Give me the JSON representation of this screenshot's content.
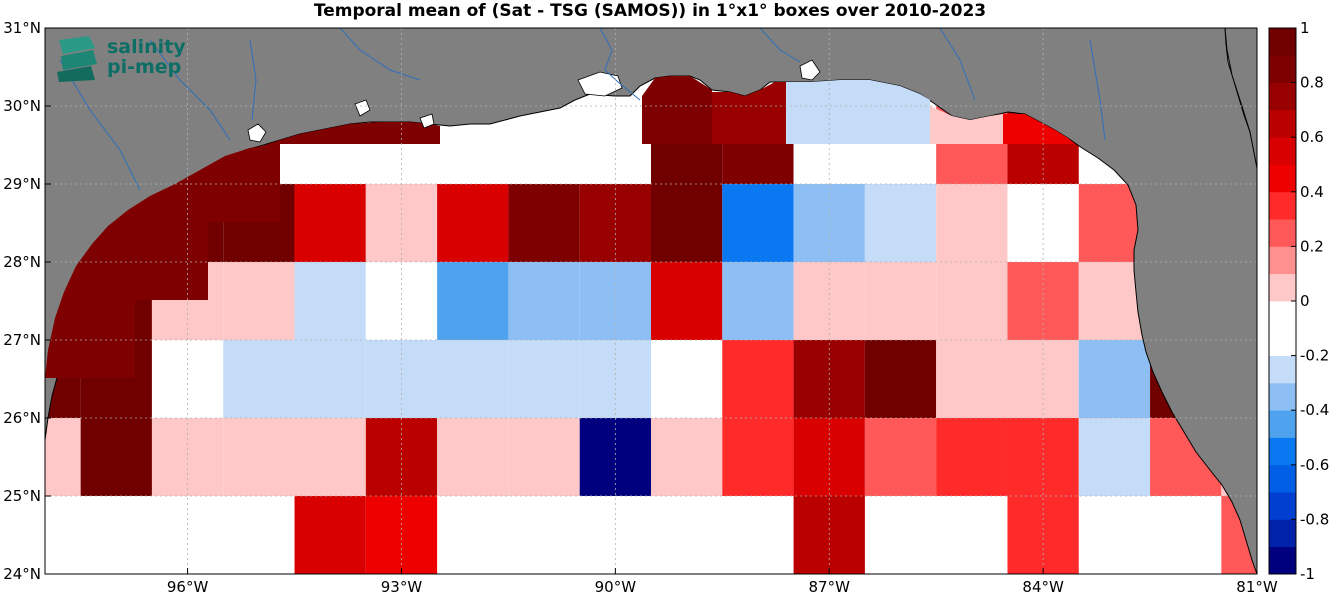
{
  "title": "Temporal mean of (Sat - TSG (SAMOS)) in 1°x1° boxes over 2010-2023",
  "logo": {
    "line1": "salinity",
    "line2": "pi-mep"
  },
  "chart_data": {
    "type": "heatmap",
    "lon_range": [
      -98,
      -81
    ],
    "lat_range": [
      24,
      31
    ],
    "x_tick_labels": [
      "96°W",
      "93°W",
      "90°W",
      "87°W",
      "84°W",
      "81°W"
    ],
    "x_tick_values": [
      -96,
      -93,
      -90,
      -87,
      -84,
      -81
    ],
    "y_tick_labels": [
      "24°N",
      "25°N",
      "26°N",
      "27°N",
      "28°N",
      "29°N",
      "30°N",
      "31°N"
    ],
    "y_tick_values": [
      24,
      25,
      26,
      27,
      28,
      29,
      30,
      31
    ],
    "grid": true,
    "colorbar": {
      "min": -1,
      "max": 1,
      "step": 0.1,
      "tick_labels": [
        "1",
        "0.8",
        "0.6",
        "0.4",
        "0.2",
        "0",
        "-0.2",
        "-0.4",
        "-0.6",
        "-0.8",
        "-1"
      ],
      "tick_values": [
        1,
        0.8,
        0.6,
        0.4,
        0.2,
        0,
        -0.2,
        -0.4,
        -0.6,
        -0.8,
        -1
      ],
      "colors": [
        "#00007f",
        "#0022a8",
        "#003fcf",
        "#005fe6",
        "#0a78f0",
        "#4ea2ee",
        "#8ebff4",
        "#c5dcf8",
        "#ffffff",
        "#ffffff",
        "#ffc8c8",
        "#ff9090",
        "#ff5858",
        "#ff2a2a",
        "#ee0000",
        "#d80000",
        "#bb0000",
        "#990000",
        "#7f0000",
        "#700000"
      ]
    },
    "cells": [
      {
        "lon": -98,
        "lat": 28.5,
        "value": 0.95
      },
      {
        "lon": -97,
        "lat": 28.5,
        "value": 0.95
      },
      {
        "lon": -96,
        "lat": 28.5,
        "value": 0.95
      },
      {
        "lon": -95,
        "lat": 28.5,
        "value": 0.95
      },
      {
        "lon": -94,
        "lat": 28.5,
        "value": 0.5
      },
      {
        "lon": -93,
        "lat": 28.5,
        "value": 0
      },
      {
        "lon": -92,
        "lat": 28.5,
        "value": 0.5
      },
      {
        "lon": -91,
        "lat": 28.5,
        "value": 0.8
      },
      {
        "lon": -90,
        "lat": 28.5,
        "value": 0.7
      },
      {
        "lon": -89,
        "lat": 28.5,
        "value": 0.95
      },
      {
        "lon": -88,
        "lat": 28.5,
        "value": -0.6
      },
      {
        "lon": -87,
        "lat": 28.5,
        "value": -0.4
      },
      {
        "lon": -86,
        "lat": 28.5,
        "value": -0.3
      },
      {
        "lon": -85,
        "lat": 28.5,
        "value": 0
      },
      {
        "lon": -84,
        "lat": 28.5,
        "value": -0.2
      },
      {
        "lon": -83,
        "lat": 28.5,
        "value": 0.2
      },
      {
        "lon": -89,
        "lat": 29.5,
        "value": 0.95
      },
      {
        "lon": -88,
        "lat": 29.5,
        "value": 0.85
      },
      {
        "lon": -87,
        "lat": 29.5,
        "value": -0.2
      },
      {
        "lon": -86,
        "lat": 29.5,
        "value": -0.2
      },
      {
        "lon": -85,
        "lat": 29.5,
        "value": 0.2
      },
      {
        "lon": -84,
        "lat": 29.5,
        "value": 0.6
      },
      {
        "lon": -98,
        "lat": 27.5,
        "value": 0.95
      },
      {
        "lon": -97,
        "lat": 27.5,
        "value": 0.95
      },
      {
        "lon": -96,
        "lat": 27.5,
        "value": 0
      },
      {
        "lon": -95,
        "lat": 27.5,
        "value": 0
      },
      {
        "lon": -94,
        "lat": 27.5,
        "value": -0.3
      },
      {
        "lon": -93,
        "lat": 27.5,
        "value": -0.2
      },
      {
        "lon": -92,
        "lat": 27.5,
        "value": -0.5
      },
      {
        "lon": -91,
        "lat": 27.5,
        "value": -0.4
      },
      {
        "lon": -90,
        "lat": 27.5,
        "value": -0.4
      },
      {
        "lon": -89,
        "lat": 27.5,
        "value": 0.5
      },
      {
        "lon": -88,
        "lat": 27.5,
        "value": -0.4
      },
      {
        "lon": -87,
        "lat": 27.5,
        "value": 0
      },
      {
        "lon": -86,
        "lat": 27.5,
        "value": 0
      },
      {
        "lon": -85,
        "lat": 27.5,
        "value": 0
      },
      {
        "lon": -84,
        "lat": 27.5,
        "value": 0.2
      },
      {
        "lon": -83,
        "lat": 27.5,
        "value": 0
      },
      {
        "lon": -98,
        "lat": 26.5,
        "value": 0.95
      },
      {
        "lon": -97,
        "lat": 26.5,
        "value": 0.95
      },
      {
        "lon": -96,
        "lat": 26.5,
        "value": -0.2
      },
      {
        "lon": -95,
        "lat": 26.5,
        "value": -0.3
      },
      {
        "lon": -94,
        "lat": 26.5,
        "value": -0.3
      },
      {
        "lon": -93,
        "lat": 26.5,
        "value": -0.3
      },
      {
        "lon": -92,
        "lat": 26.5,
        "value": -0.3
      },
      {
        "lon": -91,
        "lat": 26.5,
        "value": -0.3
      },
      {
        "lon": -90,
        "lat": 26.5,
        "value": -0.3
      },
      {
        "lon": -89,
        "lat": 26.5,
        "value": -0.2
      },
      {
        "lon": -88,
        "lat": 26.5,
        "value": 0.3
      },
      {
        "lon": -87,
        "lat": 26.5,
        "value": 0.75
      },
      {
        "lon": -86,
        "lat": 26.5,
        "value": 0.95
      },
      {
        "lon": -85,
        "lat": 26.5,
        "value": 0
      },
      {
        "lon": -84,
        "lat": 26.5,
        "value": 0
      },
      {
        "lon": -83,
        "lat": 26.5,
        "value": -0.4
      },
      {
        "lon": -82,
        "lat": 26.5,
        "value": 0.95
      },
      {
        "lon": -98,
        "lat": 25.5,
        "value": 0
      },
      {
        "lon": -97,
        "lat": 25.5,
        "value": 0.95
      },
      {
        "lon": -96,
        "lat": 25.5,
        "value": 0
      },
      {
        "lon": -95,
        "lat": 25.5,
        "value": 0
      },
      {
        "lon": -94,
        "lat": 25.5,
        "value": 0
      },
      {
        "lon": -93,
        "lat": 25.5,
        "value": 0.6
      },
      {
        "lon": -92,
        "lat": 25.5,
        "value": 0
      },
      {
        "lon": -91,
        "lat": 25.5,
        "value": 0
      },
      {
        "lon": -90,
        "lat": 25.5,
        "value": -1
      },
      {
        "lon": -89,
        "lat": 25.5,
        "value": 0
      },
      {
        "lon": -88,
        "lat": 25.5,
        "value": 0.3
      },
      {
        "lon": -87,
        "lat": 25.5,
        "value": 0.55
      },
      {
        "lon": -86,
        "lat": 25.5,
        "value": 0.2
      },
      {
        "lon": -85,
        "lat": 25.5,
        "value": 0.3
      },
      {
        "lon": -84,
        "lat": 25.5,
        "value": 0.3
      },
      {
        "lon": -83,
        "lat": 25.5,
        "value": -0.3
      },
      {
        "lon": -82,
        "lat": 25.5,
        "value": 0.2
      },
      {
        "lon": -81,
        "lat": 25.5,
        "value": 0
      },
      {
        "lon": -94,
        "lat": 24.5,
        "value": 0.5
      },
      {
        "lon": -93,
        "lat": 24.5,
        "value": 0.4
      },
      {
        "lon": -87,
        "lat": 24.5,
        "value": 0.6
      },
      {
        "lon": -84,
        "lat": 24.5,
        "value": 0.3
      },
      {
        "lon": -81,
        "lat": 24.5,
        "value": 0.2
      }
    ]
  }
}
